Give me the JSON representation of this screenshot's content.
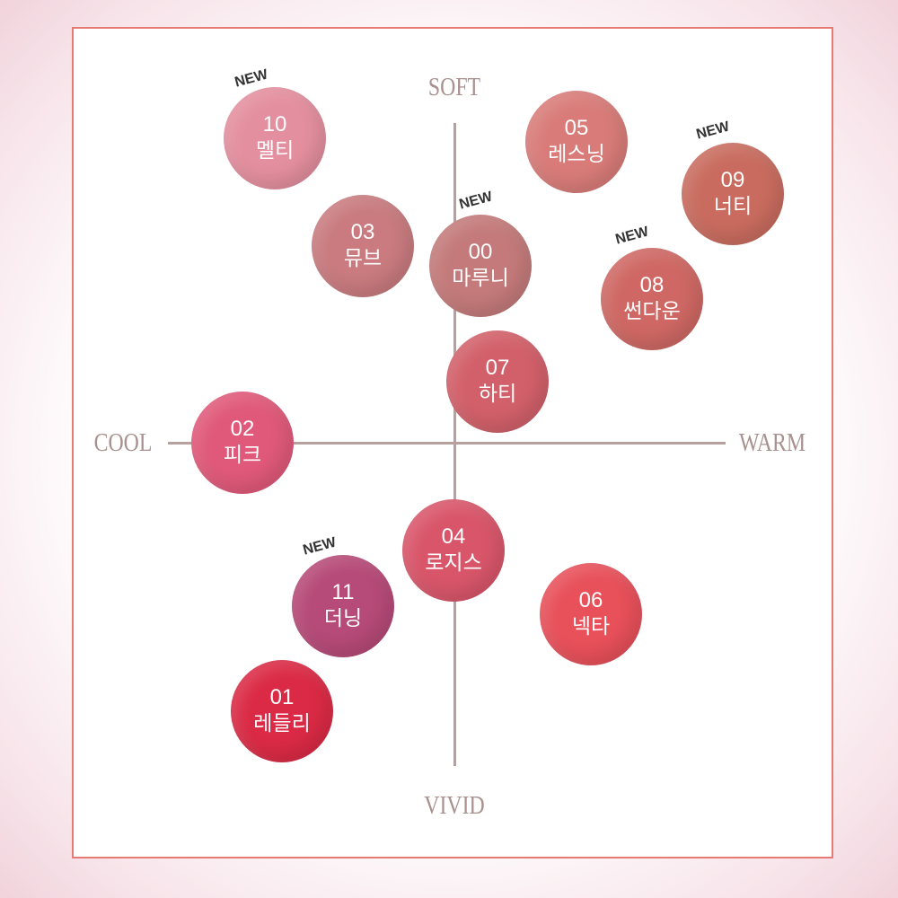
{
  "axes": {
    "top": "SOFT",
    "bottom": "VIVID",
    "left": "COOL",
    "right": "WARM"
  },
  "badge_label": "NEW",
  "frame_color": "#e77a72",
  "shades": [
    {
      "num": "10",
      "name": "멜티",
      "color": "#e48f9f",
      "is_new": true
    },
    {
      "num": "05",
      "name": "레스닝",
      "color": "#d97c79",
      "is_new": false
    },
    {
      "num": "09",
      "name": "너티",
      "color": "#c96c5f",
      "is_new": true
    },
    {
      "num": "03",
      "name": "뮤브",
      "color": "#c97b7f",
      "is_new": false
    },
    {
      "num": "00",
      "name": "마루니",
      "color": "#c47a7a",
      "is_new": true
    },
    {
      "num": "08",
      "name": "썬다운",
      "color": "#cf6864",
      "is_new": true
    },
    {
      "num": "07",
      "name": "하티",
      "color": "#d2606a",
      "is_new": false
    },
    {
      "num": "02",
      "name": "피크",
      "color": "#e0597a",
      "is_new": false
    },
    {
      "num": "04",
      "name": "로지스",
      "color": "#d9566a",
      "is_new": false
    },
    {
      "num": "11",
      "name": "더닝",
      "color": "#b64a78",
      "is_new": true
    },
    {
      "num": "06",
      "name": "넥타",
      "color": "#e8505a",
      "is_new": false
    },
    {
      "num": "01",
      "name": "레들리",
      "color": "#db2a45",
      "is_new": false
    }
  ]
}
